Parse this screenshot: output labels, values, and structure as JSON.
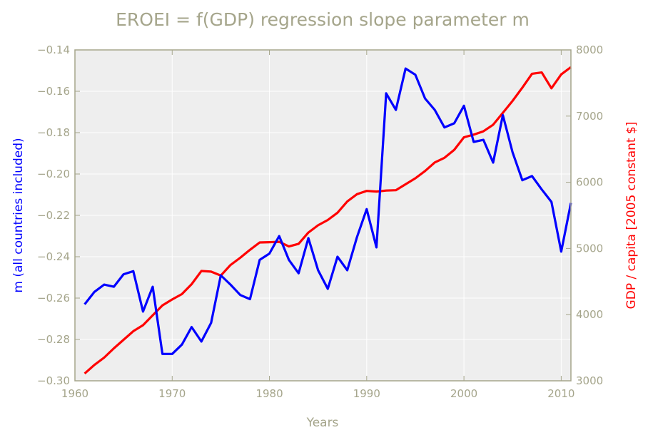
{
  "chart_data": {
    "type": "line",
    "title": "EROEI = f(GDP) regression slope parameter m",
    "xlabel": "Years",
    "ylabel_left": "m (all countries included)",
    "ylabel_right": "GDP / capita [2005 constant $]",
    "xlim": [
      1960,
      2011
    ],
    "ylim_left": [
      -0.3,
      -0.14
    ],
    "ylim_right": [
      3000,
      8000
    ],
    "x_ticks": [
      "1960",
      "1970",
      "1980",
      "1990",
      "2000",
      "2010"
    ],
    "y_left_ticks": [
      "−0.14",
      "−0.16",
      "−0.18",
      "−0.20",
      "−0.22",
      "−0.24",
      "−0.26",
      "−0.28",
      "−0.30"
    ],
    "y_right_ticks": [
      "8000",
      "7000",
      "6000",
      "5000",
      "4000",
      "3000"
    ],
    "grid": true,
    "colors": {
      "background": "#eeeeee",
      "grid": "#ffffff",
      "spine": "#a5a58b",
      "m_series": "#0000ff",
      "gdp_series": "#ff0000"
    },
    "x": [
      1961,
      1962,
      1963,
      1964,
      1965,
      1966,
      1967,
      1968,
      1969,
      1970,
      1971,
      1972,
      1973,
      1974,
      1975,
      1976,
      1977,
      1978,
      1979,
      1980,
      1981,
      1982,
      1983,
      1984,
      1985,
      1986,
      1987,
      1988,
      1989,
      1990,
      1991,
      1992,
      1993,
      1994,
      1995,
      1996,
      1997,
      1998,
      1999,
      2000,
      2001,
      2002,
      2003,
      2004,
      2005,
      2006,
      2007,
      2008,
      2009,
      2010,
      2011
    ],
    "series": [
      {
        "axis": "left",
        "color": "#0000ff",
        "values": [
          -0.263,
          -0.257,
          -0.2535,
          -0.2545,
          -0.2485,
          -0.247,
          -0.2665,
          -0.2545,
          -0.287,
          -0.287,
          -0.2825,
          -0.274,
          -0.281,
          -0.272,
          -0.249,
          -0.2535,
          -0.2585,
          -0.2605,
          -0.2415,
          -0.2385,
          -0.23,
          -0.2415,
          -0.248,
          -0.231,
          -0.2465,
          -0.2555,
          -0.24,
          -0.2465,
          -0.2305,
          -0.217,
          -0.2355,
          -0.161,
          -0.169,
          -0.149,
          -0.152,
          -0.1635,
          -0.169,
          -0.1775,
          -0.1755,
          -0.167,
          -0.1845,
          -0.1835,
          -0.1945,
          -0.1715,
          -0.1895,
          -0.203,
          -0.201,
          -0.2075,
          -0.2135,
          -0.2375,
          -0.214
        ]
      },
      {
        "axis": "right",
        "color": "#ff0000",
        "values": [
          3110,
          3240,
          3350,
          3490,
          3620,
          3750,
          3840,
          3990,
          4140,
          4230,
          4310,
          4460,
          4660,
          4650,
          4590,
          4750,
          4860,
          4980,
          5090,
          5095,
          5100,
          5030,
          5070,
          5240,
          5350,
          5430,
          5540,
          5710,
          5820,
          5870,
          5860,
          5875,
          5880,
          5970,
          6060,
          6170,
          6300,
          6370,
          6490,
          6680,
          6720,
          6770,
          6870,
          7050,
          7230,
          7430,
          7640,
          7660,
          7420,
          7630,
          7740
        ]
      }
    ]
  }
}
